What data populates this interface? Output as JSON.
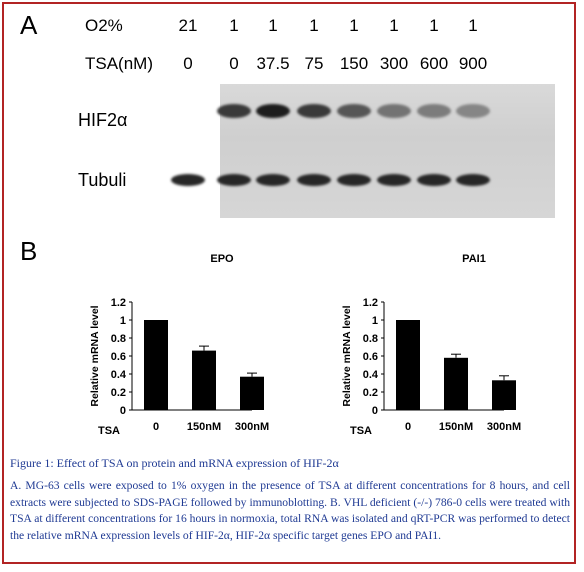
{
  "panel_a": {
    "letter": "A",
    "o2_label": "O2%",
    "tsa_label": "TSA(nM)",
    "o2_values": [
      "21",
      "1",
      "1",
      "1",
      "1",
      "1",
      "1",
      "1"
    ],
    "tsa_values": [
      "0",
      "0",
      "37.5",
      "75",
      "150",
      "300",
      "600",
      "900"
    ],
    "hif_label": "HIF2α",
    "tubulin_label": "Tubuli",
    "hif_band_intensity": [
      0.0,
      0.75,
      0.9,
      0.75,
      0.6,
      0.45,
      0.4,
      0.35
    ],
    "tubulin_band_intensity": [
      0.85,
      0.85,
      0.85,
      0.85,
      0.85,
      0.85,
      0.85,
      0.85
    ]
  },
  "panel_b": {
    "letter": "B"
  },
  "chart_data": [
    {
      "type": "bar",
      "title": "EPO",
      "ylabel": "Relative mRNA level",
      "categories": [
        "0",
        "150nM",
        "300nM"
      ],
      "xaxis_prefix": "TSA",
      "values": [
        1.0,
        0.66,
        0.37
      ],
      "errors": [
        0.0,
        0.05,
        0.04
      ],
      "ylim": [
        0,
        1.2
      ],
      "yticks": [
        "0",
        "0.2",
        "0.4",
        "0.6",
        "0.8",
        "1",
        "1.2"
      ]
    },
    {
      "type": "bar",
      "title": "PAI1",
      "ylabel": "Relative mRNA level",
      "categories": [
        "0",
        "150nM",
        "300nM"
      ],
      "xaxis_prefix": "TSA",
      "values": [
        1.0,
        0.58,
        0.33
      ],
      "errors": [
        0.0,
        0.04,
        0.05
      ],
      "ylim": [
        0,
        1.2
      ],
      "yticks": [
        "0",
        "0.2",
        "0.4",
        "0.6",
        "0.8",
        "1",
        "1.2"
      ]
    }
  ],
  "caption": {
    "title": "Figure 1: Effect of TSA on protein and mRNA expression of HIF-2α",
    "body": "A. MG-63 cells were exposed to 1% oxygen in the presence of TSA at different concentrations for 8 hours, and cell extracts were subjected to SDS-PAGE followed by immunoblotting. B. VHL deficient (-/-) 786-0 cells were treated with TSA at different concentrations for 16 hours in normoxia, total RNA was isolated and qRT-PCR was performed to detect the relative mRNA expression levels of HIF-2α, HIF-2α specific target genes EPO and PAI1."
  },
  "colors": {
    "frame": "#b22424",
    "caption": "#1f3a93",
    "bar": "#000000"
  }
}
